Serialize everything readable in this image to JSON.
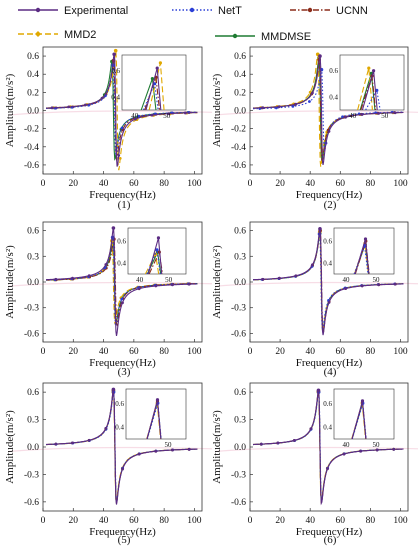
{
  "legend": {
    "items": [
      {
        "name": "Experimental",
        "color": "#5b2c83",
        "dash": "",
        "marker": "circle"
      },
      {
        "name": "NetT",
        "color": "#2b3fd6",
        "dash": "1.5,2",
        "marker": "circle"
      },
      {
        "name": "UCNN",
        "color": "#8b2c1a",
        "dash": "6,2,1.5,2",
        "marker": "circle"
      },
      {
        "name": "MMD2",
        "color": "#e0a800",
        "dash": "6,3",
        "marker": "diamond"
      },
      {
        "name": "MMDMSE",
        "color": "#1e7b32",
        "dash": "",
        "marker": "circle"
      }
    ]
  },
  "chart_data": [
    {
      "type": "line",
      "panel_label": "(1)",
      "xlabel": "Frequency(Hz)",
      "ylabel": "Amplitude(m/s²)",
      "xlim": [
        0,
        105
      ],
      "ylim": [
        -0.7,
        0.7
      ],
      "xticks": [
        0,
        20,
        40,
        60,
        80,
        100
      ],
      "yticks": [
        0.6,
        0.4,
        0.2,
        0.0,
        -0.2,
        -0.4,
        -0.6
      ],
      "inset": {
        "xticks": [
          40,
          50
        ],
        "yticks": [
          0.6,
          0.4
        ]
      },
      "series": [
        {
          "name": "Experimental",
          "f0": 48.0,
          "peak": 0.62
        },
        {
          "name": "NetT",
          "f0": 47.2,
          "peak": 0.5
        },
        {
          "name": "UCNN",
          "f0": 47.6,
          "peak": 0.55
        },
        {
          "name": "MMD2",
          "f0": 49.0,
          "peak": 0.66
        },
        {
          "name": "MMDMSE",
          "f0": 46.5,
          "peak": 0.54
        }
      ]
    },
    {
      "type": "line",
      "panel_label": "(2)",
      "xlabel": "Frequency(Hz)",
      "ylabel": "Amplitude(m/s²)",
      "xlim": [
        0,
        105
      ],
      "ylim": [
        -0.7,
        0.7
      ],
      "xticks": [
        0,
        20,
        40,
        60,
        80,
        100
      ],
      "yticks": [
        0.6,
        0.4,
        0.2,
        0.0,
        -0.2,
        -0.4,
        -0.6
      ],
      "inset": {
        "xticks": [
          40,
          50
        ],
        "yticks": [
          0.6,
          0.4
        ]
      },
      "series": [
        {
          "name": "Experimental",
          "f0": 47.5,
          "peak": 0.6
        },
        {
          "name": "NetT",
          "f0": 48.5,
          "peak": 0.45
        },
        {
          "name": "UCNN",
          "f0": 47.0,
          "peak": 0.56
        },
        {
          "name": "MMD2",
          "f0": 46.0,
          "peak": 0.62
        },
        {
          "name": "MMDMSE",
          "f0": 46.8,
          "peak": 0.58
        }
      ]
    },
    {
      "type": "line",
      "panel_label": "(3)",
      "xlabel": "Frequency(Hz)",
      "ylabel": "Amplitude(m/s²)",
      "xlim": [
        0,
        105
      ],
      "ylim": [
        -0.7,
        0.7
      ],
      "xticks": [
        0,
        20,
        40,
        60,
        80,
        100
      ],
      "yticks": [
        0.6,
        0.3,
        0.0,
        -0.3,
        -0.6
      ],
      "inset": {
        "xticks": [
          40,
          50
        ],
        "yticks": [
          0.6,
          0.4
        ]
      },
      "series": [
        {
          "name": "Experimental",
          "f0": 47.5,
          "peak": 0.63
        },
        {
          "name": "NetT",
          "f0": 47.0,
          "peak": 0.52
        },
        {
          "name": "UCNN",
          "f0": 47.8,
          "peak": 0.5
        },
        {
          "name": "MMD2",
          "f0": 46.5,
          "peak": 0.48
        },
        {
          "name": "MMDMSE",
          "f0": 47.2,
          "peak": 0.5
        }
      ]
    },
    {
      "type": "line",
      "panel_label": "(4)",
      "xlabel": "Frequency(Hz)",
      "ylabel": "Amplitude(m/s²)",
      "xlim": [
        0,
        105
      ],
      "ylim": [
        -0.7,
        0.7
      ],
      "xticks": [
        0,
        20,
        40,
        60,
        80,
        100
      ],
      "yticks": [
        0.6,
        0.3,
        0.0,
        -0.3,
        -0.6
      ],
      "inset": {
        "xticks": [
          40,
          50
        ],
        "yticks": [
          0.6,
          0.4
        ]
      },
      "series": [
        {
          "name": "Experimental",
          "f0": 47.5,
          "peak": 0.62
        },
        {
          "name": "NetT",
          "f0": 47.2,
          "peak": 0.56
        },
        {
          "name": "UCNN",
          "f0": 47.6,
          "peak": 0.6
        },
        {
          "name": "MMD2",
          "f0": 47.3,
          "peak": 0.58
        },
        {
          "name": "MMDMSE",
          "f0": 47.4,
          "peak": 0.57
        }
      ]
    },
    {
      "type": "line",
      "panel_label": "(5)",
      "xlabel": "Frequency(Hz)",
      "ylabel": "Amplitude(m/s²)",
      "xlim": [
        0,
        105
      ],
      "ylim": [
        -0.7,
        0.7
      ],
      "xticks": [
        0,
        20,
        40,
        60,
        80,
        100
      ],
      "yticks": [
        0.6,
        0.3,
        0.0,
        -0.3,
        -0.6
      ],
      "inset": {
        "xticks": [
          50
        ],
        "yticks": [
          0.6,
          0.4
        ]
      },
      "series": [
        {
          "name": "Experimental",
          "f0": 47.5,
          "peak": 0.63
        },
        {
          "name": "NetT",
          "f0": 47.6,
          "peak": 0.6
        },
        {
          "name": "UCNN",
          "f0": 47.5,
          "peak": 0.62
        },
        {
          "name": "MMD2",
          "f0": 47.4,
          "peak": 0.6
        },
        {
          "name": "MMDMSE",
          "f0": 47.5,
          "peak": 0.61
        }
      ]
    },
    {
      "type": "line",
      "panel_label": "(6)",
      "xlabel": "Frequency(Hz)",
      "ylabel": "Amplitude(m/s²)",
      "xlim": [
        0,
        105
      ],
      "ylim": [
        -0.7,
        0.7
      ],
      "xticks": [
        0,
        20,
        40,
        60,
        80,
        100
      ],
      "yticks": [
        0.6,
        0.3,
        0.0,
        -0.3,
        -0.6
      ],
      "inset": {
        "xticks": [
          40,
          50
        ],
        "yticks": [
          0.6,
          0.4
        ]
      },
      "series": [
        {
          "name": "Experimental",
          "f0": 46.5,
          "peak": 0.62
        },
        {
          "name": "NetT",
          "f0": 46.6,
          "peak": 0.6
        },
        {
          "name": "UCNN",
          "f0": 46.5,
          "peak": 0.61
        },
        {
          "name": "MMD2",
          "f0": 46.4,
          "peak": 0.6
        },
        {
          "name": "MMDMSE",
          "f0": 46.5,
          "peak": 0.6
        }
      ]
    }
  ]
}
